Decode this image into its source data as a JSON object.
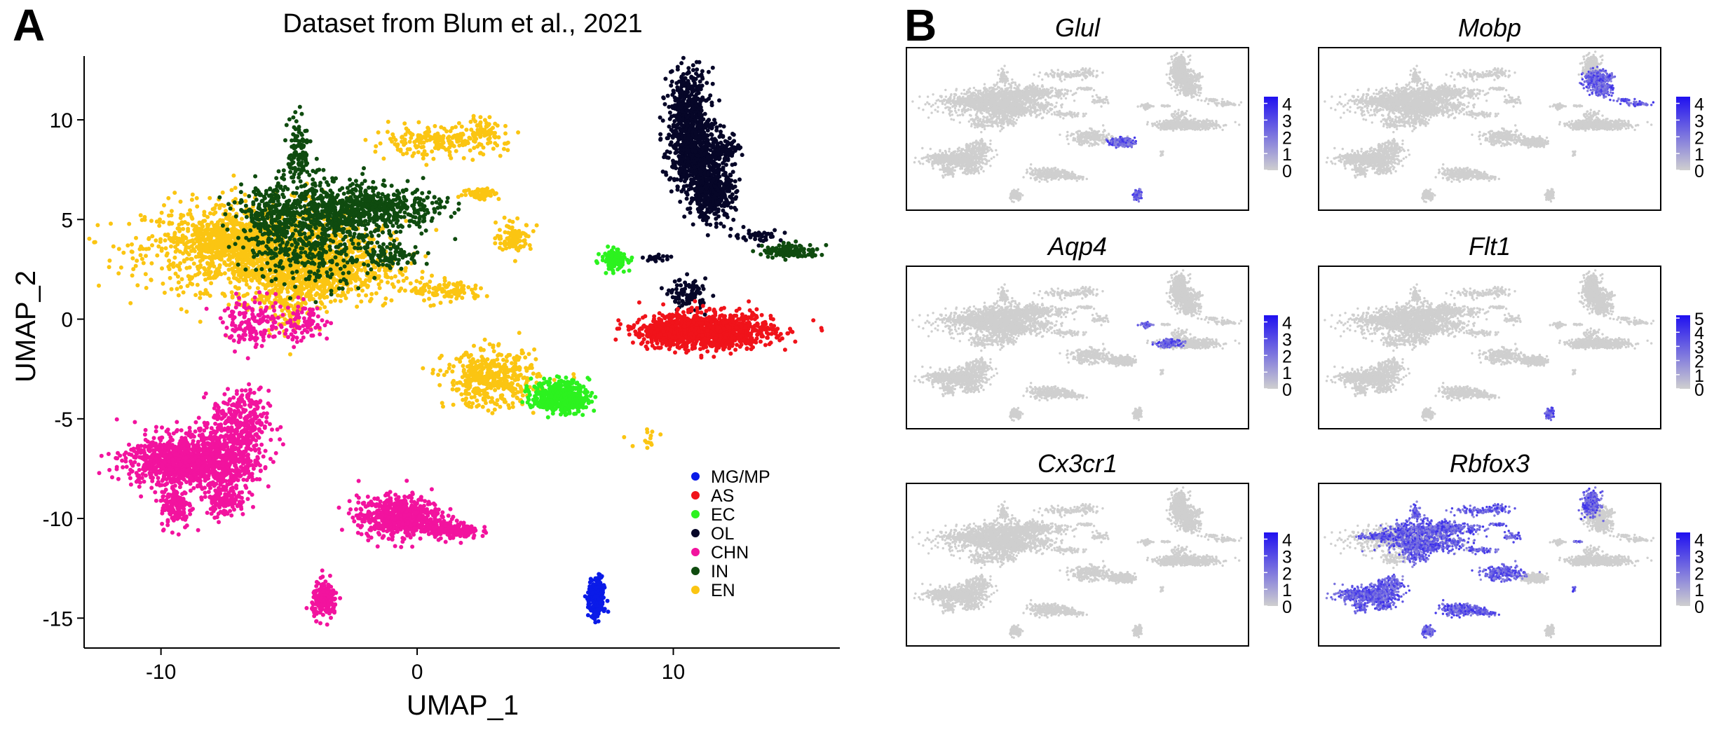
{
  "panel_labels": [
    "A",
    "B"
  ],
  "colors": {
    "grey": "#cfcfcf",
    "high": "#1f10f0",
    "low": "#cfcfcf"
  },
  "chart_data": [
    {
      "type": "scatter",
      "title": "Dataset from Blum et al., 2021",
      "xlabel": "UMAP_1",
      "ylabel": "UMAP_2",
      "xlim": [
        -13,
        16.5
      ],
      "ylim": [
        -16.5,
        13.2
      ],
      "xticks": [
        -10,
        0,
        10
      ],
      "yticks": [
        -15,
        -10,
        -5,
        0,
        5,
        10
      ],
      "xtick_labels": [
        "-10",
        "0",
        "10"
      ],
      "ytick_labels": [
        "-15",
        "-10",
        "-5",
        "0",
        "5",
        "10"
      ],
      "grid": false,
      "legend_position": "bottom-right",
      "legend": [
        {
          "name": "MG/MP",
          "color": "#0a1be8"
        },
        {
          "name": "AS",
          "color": "#f0131a"
        },
        {
          "name": "EC",
          "color": "#2cf21f"
        },
        {
          "name": "OL",
          "color": "#060628"
        },
        {
          "name": "CHN",
          "color": "#f2139e"
        },
        {
          "name": "IN",
          "color": "#0f4b0f"
        },
        {
          "name": "EN",
          "color": "#fbc512"
        }
      ],
      "clusters": [
        {
          "name": "EN",
          "cx": -6.2,
          "cy": 3.6,
          "sx": 2.2,
          "sy": 1.1,
          "n": 1400
        },
        {
          "name": "EN",
          "cx": -4.0,
          "cy": 2.4,
          "sx": 1.6,
          "sy": 0.8,
          "n": 700
        },
        {
          "name": "EN",
          "cx": -7.8,
          "cy": 4.0,
          "sx": 0.9,
          "sy": 0.4,
          "n": 250
        },
        {
          "name": "EN",
          "cx": -5.0,
          "cy": 1.0,
          "sx": 0.5,
          "sy": 0.9,
          "n": 150
        },
        {
          "name": "IN",
          "cx": -3.3,
          "cy": 5.4,
          "sx": 1.5,
          "sy": 0.8,
          "n": 600
        },
        {
          "name": "IN",
          "cx": -5.9,
          "cy": 5.2,
          "sx": 0.6,
          "sy": 0.8,
          "n": 180
        },
        {
          "name": "IN",
          "cx": -4.6,
          "cy": 8.3,
          "sx": 0.22,
          "sy": 0.9,
          "n": 120
        },
        {
          "name": "IN",
          "cx": -1.2,
          "cy": 5.6,
          "sx": 1.1,
          "sy": 0.4,
          "n": 260
        },
        {
          "name": "IN",
          "cx": -1.0,
          "cy": 3.2,
          "sx": 0.6,
          "sy": 0.3,
          "n": 90
        },
        {
          "name": "IN",
          "cx": -4.2,
          "cy": 3.5,
          "sx": 1.2,
          "sy": 0.9,
          "n": 300
        },
        {
          "name": "EN",
          "cx": 0.8,
          "cy": 8.9,
          "sx": 1.3,
          "sy": 0.35,
          "n": 220
        },
        {
          "name": "EN",
          "cx": 2.6,
          "cy": 9.6,
          "sx": 0.4,
          "sy": 0.3,
          "n": 50
        },
        {
          "name": "EN",
          "cx": 2.5,
          "cy": 6.3,
          "sx": 0.35,
          "sy": 0.15,
          "n": 70
        },
        {
          "name": "EN",
          "cx": 3.8,
          "cy": 4.1,
          "sx": 0.35,
          "sy": 0.35,
          "n": 100
        },
        {
          "name": "EN",
          "cx": 1.2,
          "cy": 1.4,
          "sx": 0.7,
          "sy": 0.25,
          "n": 110
        },
        {
          "name": "EN",
          "cx": 2.9,
          "cy": -3.0,
          "sx": 0.9,
          "sy": 0.7,
          "n": 450
        },
        {
          "name": "EN",
          "cx": 9.0,
          "cy": -6.0,
          "sx": 0.3,
          "sy": 0.3,
          "n": 14
        },
        {
          "name": "CHN",
          "cx": -6.4,
          "cy": -0.2,
          "sx": 0.6,
          "sy": 0.6,
          "n": 150
        },
        {
          "name": "CHN",
          "cx": -4.4,
          "cy": -0.2,
          "sx": 0.5,
          "sy": 0.5,
          "n": 80
        },
        {
          "name": "CHN",
          "cx": -9.6,
          "cy": -7.1,
          "sx": 0.9,
          "sy": 0.65,
          "n": 700
        },
        {
          "name": "CHN",
          "cx": -7.7,
          "cy": -7.0,
          "sx": 0.8,
          "sy": 0.8,
          "n": 600
        },
        {
          "name": "CHN",
          "cx": -6.9,
          "cy": -5.2,
          "sx": 0.55,
          "sy": 0.8,
          "n": 300
        },
        {
          "name": "CHN",
          "cx": -9.4,
          "cy": -9.4,
          "sx": 0.3,
          "sy": 0.55,
          "n": 140
        },
        {
          "name": "CHN",
          "cx": -7.5,
          "cy": -9.1,
          "sx": 0.4,
          "sy": 0.4,
          "n": 120
        },
        {
          "name": "CHN",
          "cx": -0.7,
          "cy": -9.9,
          "sx": 0.8,
          "sy": 0.5,
          "n": 650
        },
        {
          "name": "CHN",
          "cx": 1.4,
          "cy": -10.6,
          "sx": 0.5,
          "sy": 0.2,
          "n": 150
        },
        {
          "name": "CHN",
          "cx": -3.6,
          "cy": -14.1,
          "sx": 0.25,
          "sy": 0.45,
          "n": 180
        },
        {
          "name": "OL",
          "cx": 10.6,
          "cy": 10.3,
          "sx": 0.4,
          "sy": 1.1,
          "n": 500
        },
        {
          "name": "OL",
          "cx": 11.0,
          "cy": 8.0,
          "sx": 0.55,
          "sy": 0.9,
          "n": 600
        },
        {
          "name": "OL",
          "cx": 11.5,
          "cy": 6.2,
          "sx": 0.45,
          "sy": 0.6,
          "n": 350
        },
        {
          "name": "OL",
          "cx": 12.2,
          "cy": 8.6,
          "sx": 0.25,
          "sy": 0.2,
          "n": 40
        },
        {
          "name": "OL",
          "cx": 13.3,
          "cy": 4.2,
          "sx": 0.5,
          "sy": 0.15,
          "n": 40
        },
        {
          "name": "IN",
          "cx": 14.6,
          "cy": 3.4,
          "sx": 0.55,
          "sy": 0.18,
          "n": 130
        },
        {
          "name": "OL",
          "cx": 10.6,
          "cy": 1.2,
          "sx": 0.35,
          "sy": 0.4,
          "n": 90
        },
        {
          "name": "OL",
          "cx": 9.3,
          "cy": 3.1,
          "sx": 0.3,
          "sy": 0.08,
          "n": 20
        },
        {
          "name": "AS",
          "cx": 11.5,
          "cy": -0.6,
          "sx": 1.2,
          "sy": 0.45,
          "n": 1000
        },
        {
          "name": "AS",
          "cx": 9.7,
          "cy": -0.6,
          "sx": 0.6,
          "sy": 0.35,
          "n": 250
        },
        {
          "name": "EC",
          "cx": 7.7,
          "cy": 3.0,
          "sx": 0.25,
          "sy": 0.25,
          "n": 120
        },
        {
          "name": "EC",
          "cx": 5.6,
          "cy": -3.9,
          "sx": 0.55,
          "sy": 0.4,
          "n": 450
        },
        {
          "name": "MG/MP",
          "cx": 7.0,
          "cy": -14.0,
          "sx": 0.15,
          "sy": 0.5,
          "n": 260
        }
      ]
    },
    {
      "type": "scatter",
      "title": "Glul",
      "expression_cluster_ids": [
        38,
        39,
        40
      ],
      "scale_ticks": [
        "0",
        "1",
        "2",
        "3",
        "4"
      ],
      "scale_max": 4.4,
      "legend_position": "right"
    },
    {
      "type": "scatter",
      "title": "Mobp",
      "expression_cluster_ids": [
        28,
        29,
        30,
        31,
        32
      ],
      "scale_ticks": [
        "0",
        "1",
        "2",
        "3",
        "4"
      ],
      "scale_max": 4.4,
      "legend_position": "right"
    },
    {
      "type": "scatter",
      "title": "Aqp4",
      "expression_cluster_ids": [
        36,
        37
      ],
      "scale_ticks": [
        "0",
        "1",
        "2",
        "3",
        "4"
      ],
      "scale_max": 4.4,
      "legend_position": "right"
    },
    {
      "type": "scatter",
      "title": "Flt1",
      "expression_cluster_ids": [
        39,
        40
      ],
      "scale_ticks": [
        "0",
        "1",
        "2",
        "3",
        "4",
        "5"
      ],
      "scale_max": 5.2,
      "legend_position": "right"
    },
    {
      "type": "scatter",
      "title": "Cx3cr1",
      "expression_cluster_ids": [
        41
      ],
      "scale_ticks": [
        "0",
        "1",
        "2",
        "3",
        "4"
      ],
      "scale_max": 4.4,
      "legend_position": "right"
    },
    {
      "type": "scatter",
      "title": "Rbfox3",
      "expression_cluster_ids": [
        1,
        2,
        3,
        4,
        5,
        6,
        7,
        8,
        9,
        10,
        11,
        12,
        13,
        14,
        15,
        16,
        18,
        19,
        20,
        21,
        22,
        23,
        24,
        25,
        26,
        27,
        34
      ],
      "scale_ticks": [
        "0",
        "1",
        "2",
        "3",
        "4"
      ],
      "scale_max": 4.4,
      "legend_position": "right"
    }
  ]
}
